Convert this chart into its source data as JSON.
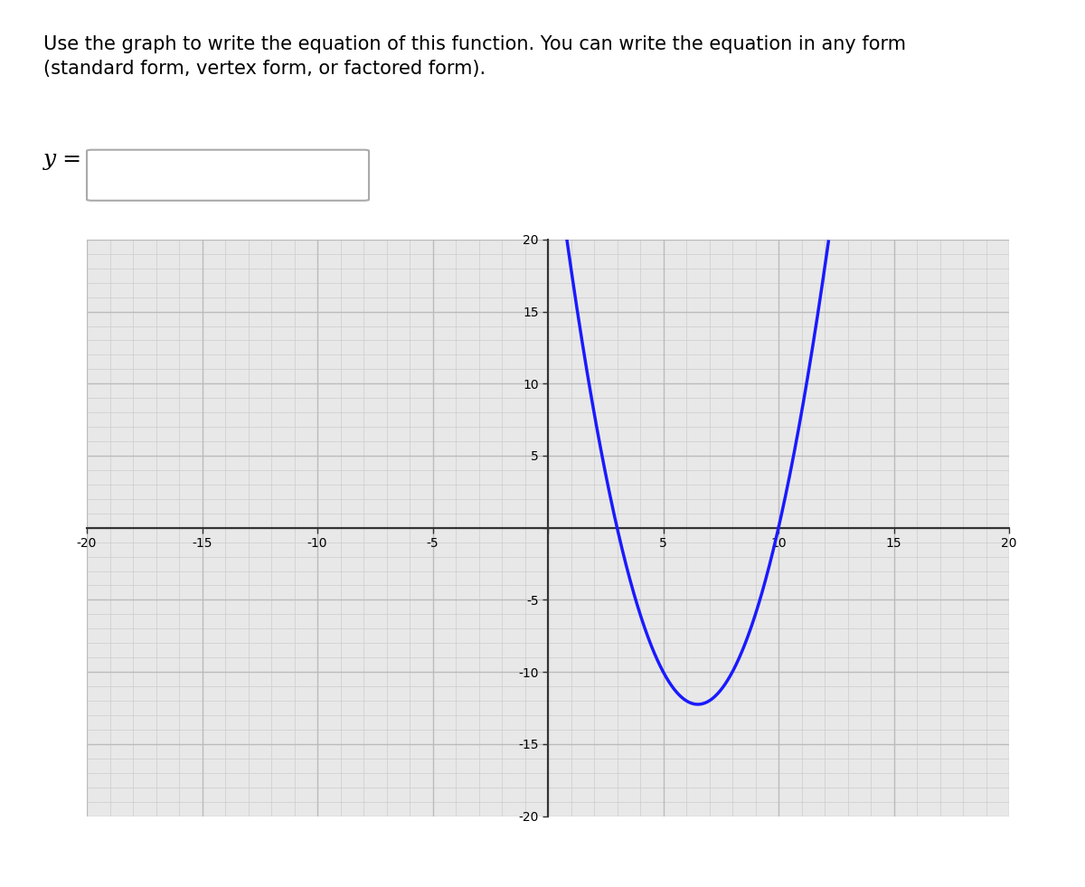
{
  "title_text": "Use the graph to write the equation of this function. You can write the equation in any form\n(standard form, vertex form, or factored form).",
  "title_fontsize": 15,
  "ylabel_label": "y =",
  "curve_color": "#1a1aff",
  "curve_linewidth": 2.5,
  "xlim": [
    -20,
    20
  ],
  "ylim": [
    -20,
    20
  ],
  "xticks": [
    -20,
    -15,
    -10,
    -5,
    0,
    5,
    10,
    15,
    20
  ],
  "yticks": [
    -20,
    -15,
    -10,
    -5,
    0,
    5,
    10,
    15,
    20
  ],
  "grid_color": "#bbbbbb",
  "grid_linewidth": 0.5,
  "axis_color": "#333333",
  "background_color": "#e8e8e8",
  "curve_equation_a": 1,
  "curve_equation_b": -13,
  "curve_equation_c": 30,
  "curve_xmin": -1.5,
  "curve_xmax": 20,
  "minor_grid_color": "#cccccc",
  "tick_fontsize": 13
}
